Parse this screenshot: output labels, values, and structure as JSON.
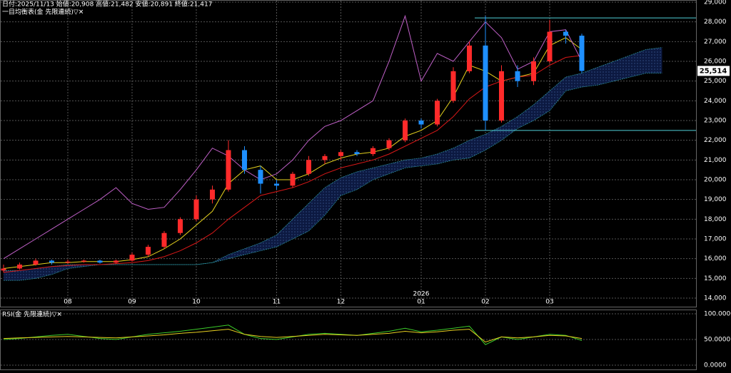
{
  "header": "日付:2025/11/13 始値:20,908 高値:21,482 安値:20,891 終値:21,417",
  "chart_data": [
    {
      "type": "candlestick",
      "title": "一目均衡表(金 先限連続)▽✕",
      "x_group_label": "2026",
      "categories": [
        null,
        null,
        null,
        null,
        "08",
        null,
        null,
        null,
        "09",
        null,
        null,
        null,
        "10",
        null,
        null,
        null,
        null,
        "11",
        null,
        null,
        null,
        "12",
        null,
        null,
        null,
        null,
        "01",
        null,
        null,
        null,
        "02",
        null,
        null,
        null,
        "03",
        null,
        null,
        null,
        null,
        null,
        null,
        null
      ],
      "ohlc": {
        "open": [
          15400,
          15500,
          15700,
          15900,
          15800,
          15850,
          15900,
          15800,
          15900,
          16200,
          16600,
          17300,
          18000,
          19000,
          19500,
          21500,
          20500,
          19800,
          19700,
          20300,
          21000,
          21200,
          21400,
          21300,
          21600,
          22000,
          23000,
          22800,
          24000,
          25500,
          26800,
          23000,
          25500,
          25000,
          26000,
          27500,
          27300,
          null,
          null,
          null,
          null,
          null
        ],
        "high": [
          15700,
          15800,
          16000,
          15950,
          15950,
          15950,
          15950,
          15950,
          16300,
          16700,
          17400,
          18100,
          19200,
          19700,
          22000,
          21700,
          20700,
          20000,
          20400,
          21200,
          21300,
          21500,
          21500,
          21700,
          22100,
          23100,
          23100,
          24100,
          25700,
          27000,
          28300,
          25800,
          25800,
          26200,
          28100,
          27600,
          27400,
          null,
          null,
          null,
          null,
          null
        ],
        "low": [
          15300,
          15450,
          15650,
          15700,
          15750,
          15800,
          15750,
          15750,
          15850,
          16100,
          16500,
          17200,
          17900,
          18800,
          19400,
          20300,
          19300,
          19500,
          19600,
          20200,
          20800,
          21000,
          21200,
          21200,
          21500,
          21900,
          22600,
          22700,
          23900,
          25400,
          22500,
          22900,
          24700,
          24800,
          25900,
          26900,
          25400,
          null,
          null,
          null,
          null,
          null
        ],
        "close": [
          15500,
          15700,
          15900,
          15800,
          15850,
          15900,
          15800,
          15900,
          16200,
          16600,
          17300,
          18000,
          19000,
          19500,
          21500,
          20500,
          19800,
          19700,
          20300,
          21000,
          21200,
          21400,
          21300,
          21600,
          22000,
          23000,
          22800,
          24000,
          25500,
          26800,
          23000,
          25500,
          25000,
          26000,
          27500,
          27300,
          25514,
          null,
          null,
          null,
          null,
          null
        ]
      },
      "up_color": "#ff2a2a",
      "down_color": "#1e8fff",
      "series": [
        {
          "color": "#e6d21e",
          "values": [
            15500,
            15600,
            15700,
            15800,
            15800,
            15850,
            15850,
            15850,
            15950,
            16100,
            16500,
            17000,
            17700,
            18400,
            19800,
            20500,
            20700,
            20000,
            20000,
            20300,
            20800,
            21100,
            21300,
            21400,
            21600,
            22200,
            22500,
            23000,
            24200,
            25800,
            25500,
            25000,
            25200,
            25400,
            26800,
            27200,
            26600,
            null,
            null,
            null,
            null,
            null
          ]
        },
        {
          "color": "#d81818",
          "values": [
            15300,
            15400,
            15500,
            15600,
            15650,
            15700,
            15700,
            15750,
            15800,
            15900,
            16100,
            16400,
            16800,
            17300,
            18000,
            18600,
            19200,
            19400,
            19600,
            19900,
            20300,
            20600,
            20800,
            21000,
            21300,
            21700,
            22100,
            22500,
            23200,
            24100,
            24700,
            25000,
            25200,
            25300,
            25800,
            26200,
            26300,
            null,
            null,
            null,
            null,
            null
          ]
        },
        {
          "color": "#c060c8",
          "values": [
            16000,
            16500,
            17000,
            17500,
            18000,
            18500,
            19000,
            19600,
            18800,
            18500,
            18600,
            19500,
            20500,
            21600,
            21200,
            20500,
            20000,
            20300,
            21000,
            22000,
            22700,
            23000,
            23500,
            24000,
            26000,
            28300,
            25000,
            26400,
            26000,
            27000,
            28000,
            27200,
            25600,
            26000,
            27500,
            27600,
            26000,
            null,
            null,
            null,
            null,
            null
          ]
        }
      ],
      "cloud": {
        "color": "#10204a",
        "edge_color": "#2a8c9a",
        "span_a": [
          15400,
          15400,
          15500,
          15600,
          15700,
          15700,
          15700,
          15700,
          15700,
          15700,
          15700,
          15700,
          15700,
          15800,
          16200,
          16500,
          16800,
          17200,
          18000,
          18800,
          19600,
          20100,
          20400,
          20600,
          20800,
          21000,
          21100,
          21300,
          21600,
          22000,
          22300,
          22700,
          23200,
          23800,
          24500,
          25200,
          25400,
          25700,
          26000,
          26300,
          26600,
          26700
        ],
        "span_b": [
          14900,
          14900,
          15000,
          15200,
          15500,
          15600,
          15700,
          15700,
          15700,
          15700,
          15700,
          15700,
          15700,
          15800,
          16000,
          16200,
          16400,
          16600,
          17000,
          17400,
          18200,
          19200,
          19500,
          20000,
          20300,
          20600,
          20700,
          20800,
          21000,
          21100,
          21500,
          22000,
          22600,
          23000,
          23500,
          24500,
          24700,
          24800,
          25000,
          25200,
          25400,
          25400
        ]
      },
      "hlines": {
        "values": [
          28200,
          22500
        ],
        "color": "#4fd0d8"
      },
      "price_marker": {
        "value": 25514,
        "label": "25,514"
      },
      "ylim": [
        14000,
        29000
      ],
      "yticks": [
        {
          "value": 14000,
          "label": "14,000"
        },
        {
          "value": 15000,
          "label": "15,000"
        },
        {
          "value": 16000,
          "label": "16,000"
        },
        {
          "value": 17000,
          "label": "17,000"
        },
        {
          "value": 18000,
          "label": "18,000"
        },
        {
          "value": 19000,
          "label": "19,000"
        },
        {
          "value": 20000,
          "label": "20,000"
        },
        {
          "value": 21000,
          "label": "21,000"
        },
        {
          "value": 22000,
          "label": "22,000"
        },
        {
          "value": 23000,
          "label": "23,000"
        },
        {
          "value": 24000,
          "label": "24,000"
        },
        {
          "value": 25000,
          "label": "25,000"
        },
        {
          "value": 26000,
          "label": "26,000"
        },
        {
          "value": 27000,
          "label": "27,000"
        },
        {
          "value": 28000,
          "label": "28,000"
        },
        {
          "value": 29000,
          "label": "29,000"
        }
      ],
      "grid": true
    },
    {
      "type": "line",
      "title": "RSI(金 先限連続)▽✕",
      "series": [
        {
          "color": "#3ccc2a",
          "values": [
            50,
            52,
            55,
            58,
            60,
            56,
            52,
            50,
            55,
            60,
            63,
            66,
            70,
            74,
            78,
            60,
            52,
            50,
            55,
            60,
            62,
            60,
            58,
            62,
            66,
            72,
            65,
            68,
            72,
            76,
            40,
            55,
            50,
            55,
            60,
            58,
            48
          ]
        },
        {
          "color": "#e8d020",
          "values": [
            52,
            53,
            54,
            55,
            56,
            55,
            54,
            53,
            55,
            57,
            59,
            62,
            64,
            67,
            70,
            60,
            56,
            54,
            56,
            58,
            60,
            59,
            58,
            60,
            62,
            66,
            63,
            65,
            68,
            70,
            45,
            55,
            53,
            55,
            58,
            57,
            52
          ]
        }
      ],
      "ylim": [
        0,
        100
      ],
      "yticks": [
        {
          "value": 0,
          "label": "0.0000"
        },
        {
          "value": 50,
          "label": "50.0000"
        },
        {
          "value": 100,
          "label": "100.0000"
        }
      ],
      "grid": true
    }
  ]
}
